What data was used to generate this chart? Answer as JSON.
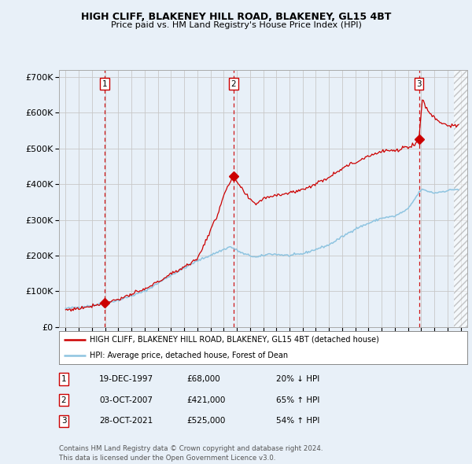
{
  "title1": "HIGH CLIFF, BLAKENEY HILL ROAD, BLAKENEY, GL15 4BT",
  "title2": "Price paid vs. HM Land Registry's House Price Index (HPI)",
  "ylim": [
    0,
    720000
  ],
  "yticks": [
    0,
    100000,
    200000,
    300000,
    400000,
    500000,
    600000,
    700000
  ],
  "ytick_labels": [
    "£0",
    "£100K",
    "£200K",
    "£300K",
    "£400K",
    "£500K",
    "£600K",
    "£700K"
  ],
  "xlim_start": 1994.5,
  "xlim_end": 2025.5,
  "xticks": [
    1995,
    1996,
    1997,
    1998,
    1999,
    2000,
    2001,
    2002,
    2003,
    2004,
    2005,
    2006,
    2007,
    2008,
    2009,
    2010,
    2011,
    2012,
    2013,
    2014,
    2015,
    2016,
    2017,
    2018,
    2019,
    2020,
    2021,
    2022,
    2023,
    2024,
    2025
  ],
  "sale_dates": [
    1997.97,
    2007.75,
    2021.83
  ],
  "sale_prices": [
    68000,
    421000,
    525000
  ],
  "sale_labels": [
    "1",
    "2",
    "3"
  ],
  "legend_line1": "HIGH CLIFF, BLAKENEY HILL ROAD, BLAKENEY, GL15 4BT (detached house)",
  "legend_line2": "HPI: Average price, detached house, Forest of Dean",
  "table_data": [
    [
      "1",
      "19-DEC-1997",
      "£68,000",
      "20% ↓ HPI"
    ],
    [
      "2",
      "03-OCT-2007",
      "£421,000",
      "65% ↑ HPI"
    ],
    [
      "3",
      "28-OCT-2021",
      "£525,000",
      "54% ↑ HPI"
    ]
  ],
  "footer": "Contains HM Land Registry data © Crown copyright and database right 2024.\nThis data is licensed under the Open Government Licence v3.0.",
  "hpi_color": "#8ec4e0",
  "sale_color": "#cc0000",
  "background_color": "#e8f0f8",
  "plot_bg": "#e8f0f8"
}
